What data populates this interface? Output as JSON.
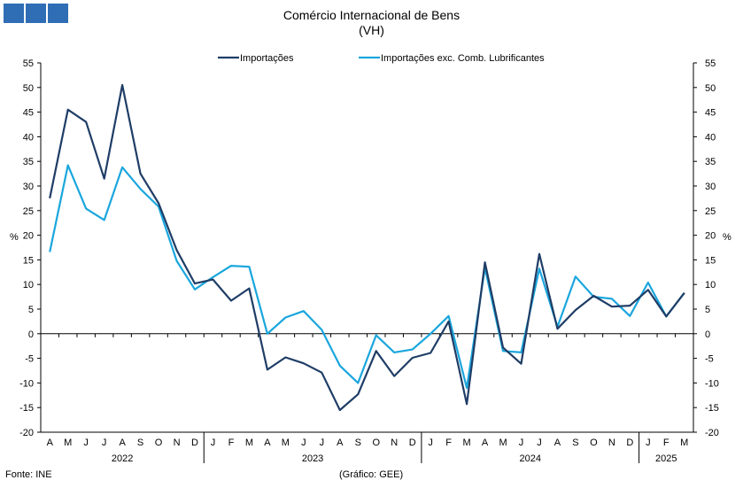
{
  "title": "Comércio Internacional de Bens",
  "subtitle": "(VH)",
  "source": "Fonte: INE",
  "credit": "(Gráfico: GEE)",
  "chart_data": {
    "type": "line",
    "ylabel": "%",
    "ylim": [
      -20,
      55
    ],
    "yticks": [
      -20,
      -15,
      -10,
      -5,
      0,
      5,
      10,
      15,
      20,
      25,
      30,
      35,
      40,
      45,
      50,
      55
    ],
    "grid": false,
    "legend_position": "top",
    "x": [
      "A",
      "M",
      "J",
      "J",
      "A",
      "S",
      "O",
      "N",
      "D",
      "J",
      "F",
      "M",
      "A",
      "M",
      "J",
      "J",
      "A",
      "S",
      "O",
      "N",
      "D",
      "J",
      "F",
      "M",
      "A",
      "M",
      "J",
      "J",
      "A",
      "S",
      "O",
      "N",
      "D",
      "J",
      "F",
      "M"
    ],
    "years": [
      {
        "label": "2022",
        "start": 0,
        "end": 8
      },
      {
        "label": "2023",
        "start": 9,
        "end": 20
      },
      {
        "label": "2024",
        "start": 21,
        "end": 32
      },
      {
        "label": "2025",
        "start": 33,
        "end": 35
      }
    ],
    "series": [
      {
        "name": "Importações",
        "color": "#1f3d66",
        "values": [
          27.5,
          45.5,
          43,
          31.5,
          50.5,
          32.5,
          26.5,
          17,
          10.2,
          11,
          6.7,
          9.2,
          -7.3,
          -4.8,
          -6,
          -7.9,
          -15.5,
          -12.3,
          -3.5,
          -8.6,
          -4.9,
          -3.9,
          2.5,
          -14.3,
          14.5,
          -2.8,
          -6.1,
          16.2,
          1,
          4.8,
          7.7,
          5.5,
          5.7,
          8.9,
          3.5,
          8.3
        ]
      },
      {
        "name": "Importações exc. Comb. Lubrificantes",
        "color": "#1aa6dd",
        "values": [
          16.6,
          34.2,
          25.4,
          23.1,
          33.8,
          29.4,
          25.8,
          14.8,
          9,
          11.5,
          13.8,
          13.6,
          0,
          3.3,
          4.6,
          0.8,
          -6.5,
          -10,
          -0.3,
          -3.8,
          -3.2,
          0,
          3.6,
          -11,
          13.4,
          -3.5,
          -3.8,
          13.2,
          1.4,
          11.6,
          7.5,
          7.1,
          3.6,
          10.4,
          3.5,
          8.3
        ]
      }
    ]
  }
}
